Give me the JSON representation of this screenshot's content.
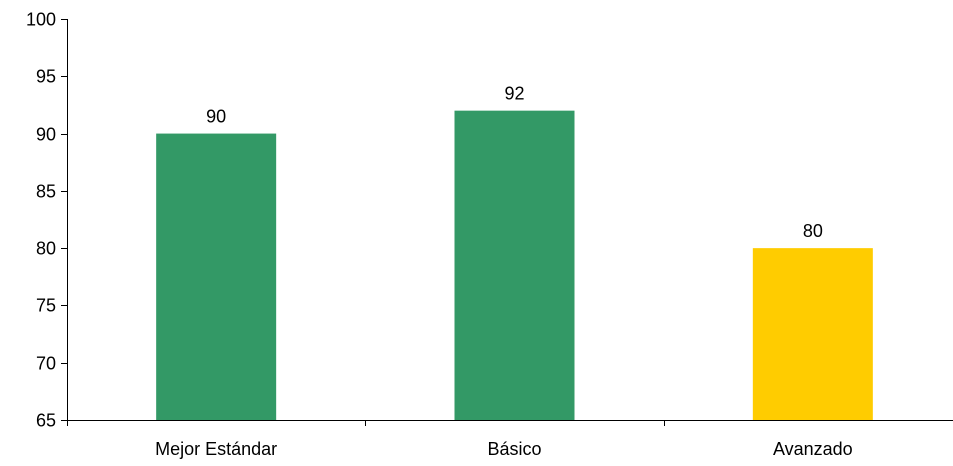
{
  "chart_data": {
    "type": "bar",
    "title": "",
    "xlabel": "",
    "ylabel": "",
    "categories": [
      "Mejor Estándar",
      "Básico",
      "Avanzado"
    ],
    "values": [
      90,
      92,
      80
    ],
    "data_labels": [
      "90",
      "92",
      "80"
    ],
    "bar_colors": [
      "#339966",
      "#339966",
      "#FFCC00"
    ],
    "ylim": [
      65,
      100
    ],
    "yticks": [
      65,
      70,
      75,
      80,
      85,
      90,
      95,
      100
    ],
    "ytick_labels": [
      "65",
      "70",
      "75",
      "80",
      "85",
      "90",
      "95",
      "100"
    ],
    "grid": false,
    "legend": "none"
  }
}
